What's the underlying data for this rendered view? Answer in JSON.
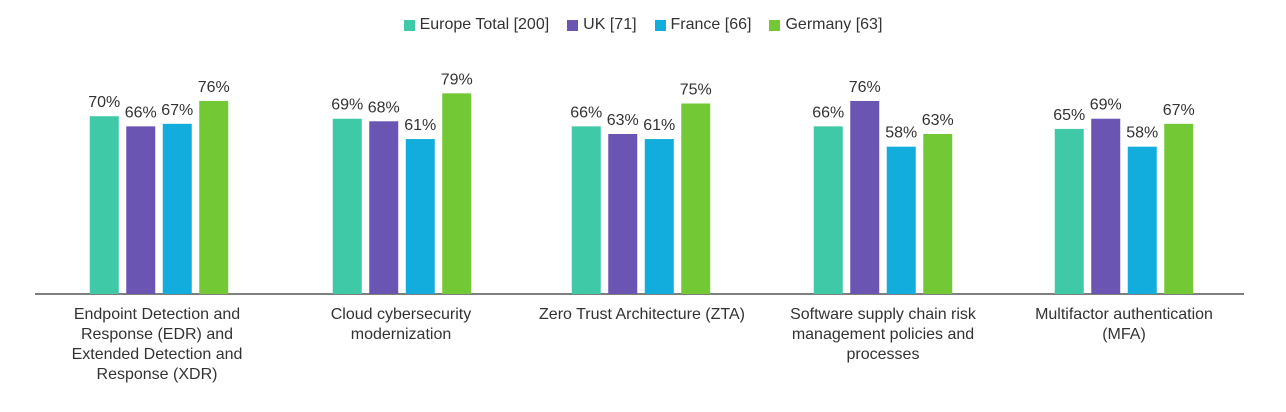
{
  "chart_data": {
    "type": "bar",
    "title": "",
    "xlabel": "",
    "ylabel": "",
    "ylim": [
      0,
      100
    ],
    "grid": false,
    "legend_position": "top-center",
    "categories": [
      "Endpoint Detection and Response (EDR) and Extended Detection and Response (XDR)",
      "Cloud cybersecurity modernization",
      "Zero Trust Architecture (ZTA)",
      "Software supply chain risk management policies and processes",
      "Multifactor authentication (MFA)"
    ],
    "series": [
      {
        "name": "Europe Total [200]",
        "color": "#3fc9a6",
        "values": [
          70,
          69,
          66,
          66,
          65
        ]
      },
      {
        "name": "UK [71]",
        "color": "#6b55b2",
        "values": [
          66,
          68,
          63,
          76,
          69
        ]
      },
      {
        "name": "France [66]",
        "color": "#12acdd",
        "values": [
          67,
          61,
          61,
          58,
          58
        ]
      },
      {
        "name": "Germany [63]",
        "color": "#72c835",
        "values": [
          76,
          79,
          75,
          63,
          67
        ]
      }
    ],
    "value_suffix": "%"
  }
}
